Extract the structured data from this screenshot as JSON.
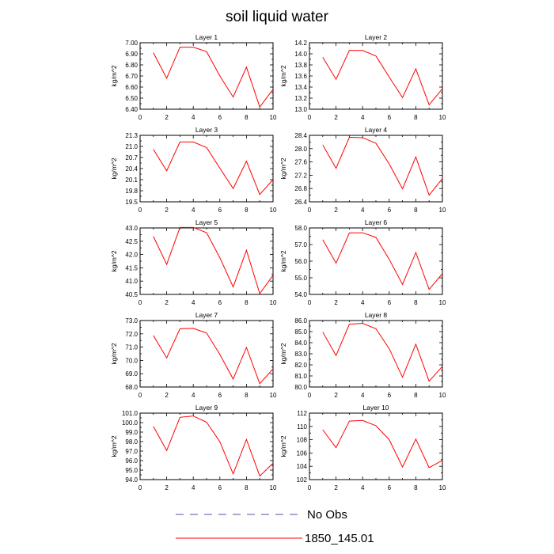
{
  "figure": {
    "title": "soil liquid water",
    "ylabel": "kg/m^2"
  },
  "legend": {
    "entries": [
      {
        "label": "No Obs",
        "color": "#5050a0",
        "style": "dashed"
      },
      {
        "label": "1850_145.01",
        "color": "#ff0000",
        "style": "solid"
      }
    ]
  },
  "chart_data": [
    {
      "type": "line",
      "title": "Layer 1",
      "ylabel": "kg/m^2",
      "xlim": [
        0,
        10
      ],
      "ylim": [
        6.4,
        7.0
      ],
      "xticks": [
        "0",
        "2",
        "4",
        "6",
        "8",
        "10"
      ],
      "yticks": [
        "6.40",
        "6.50",
        "6.60",
        "6.70",
        "6.80",
        "6.90",
        "7.00"
      ],
      "series": [
        {
          "name": "1850_145.01",
          "color": "#ff0000",
          "x": [
            1,
            2,
            3,
            4,
            5,
            6,
            7,
            8,
            9,
            10
          ],
          "values": [
            6.91,
            6.68,
            6.96,
            6.96,
            6.92,
            6.7,
            6.51,
            6.78,
            6.42,
            6.58
          ]
        }
      ]
    },
    {
      "type": "line",
      "title": "Layer 2",
      "ylabel": "kg/m^2",
      "xlim": [
        0,
        10
      ],
      "ylim": [
        13.0,
        14.2
      ],
      "xticks": [
        "0",
        "2",
        "4",
        "6",
        "8",
        "10"
      ],
      "yticks": [
        "13.0",
        "13.2",
        "13.4",
        "13.6",
        "13.8",
        "14.0",
        "14.2"
      ],
      "series": [
        {
          "name": "1850_145.01",
          "color": "#ff0000",
          "x": [
            1,
            2,
            3,
            4,
            5,
            6,
            7,
            8,
            9,
            10
          ],
          "values": [
            13.94,
            13.54,
            14.06,
            14.06,
            13.96,
            13.58,
            13.21,
            13.73,
            13.08,
            13.37
          ]
        }
      ]
    },
    {
      "type": "line",
      "title": "Layer 3",
      "ylabel": "kg/m^2",
      "xlim": [
        0,
        10
      ],
      "ylim": [
        19.5,
        21.3
      ],
      "xticks": [
        "0",
        "2",
        "4",
        "6",
        "8",
        "10"
      ],
      "yticks": [
        "19.5",
        "19.8",
        "20.1",
        "20.4",
        "20.7",
        "21.0",
        "21.3"
      ],
      "series": [
        {
          "name": "1850_145.01",
          "color": "#ff0000",
          "x": [
            1,
            2,
            3,
            4,
            5,
            6,
            7,
            8,
            9,
            10
          ],
          "values": [
            20.92,
            20.34,
            21.12,
            21.12,
            20.97,
            20.41,
            19.86,
            20.6,
            19.7,
            20.1
          ]
        }
      ]
    },
    {
      "type": "line",
      "title": "Layer 4",
      "ylabel": "kg/m^2",
      "xlim": [
        0,
        10
      ],
      "ylim": [
        26.4,
        28.4
      ],
      "xticks": [
        "0",
        "2",
        "4",
        "6",
        "8",
        "10"
      ],
      "yticks": [
        "26.4",
        "26.8",
        "27.2",
        "27.6",
        "28.0",
        "28.4"
      ],
      "series": [
        {
          "name": "1850_145.01",
          "color": "#ff0000",
          "x": [
            1,
            2,
            3,
            4,
            5,
            6,
            7,
            8,
            9,
            10
          ],
          "values": [
            28.11,
            27.41,
            28.34,
            28.33,
            28.16,
            27.54,
            26.79,
            27.75,
            26.6,
            27.1
          ]
        }
      ]
    },
    {
      "type": "line",
      "title": "Layer 5",
      "ylabel": "kg/m^2",
      "xlim": [
        0,
        10
      ],
      "ylim": [
        40.5,
        43.0
      ],
      "xticks": [
        "0",
        "2",
        "4",
        "6",
        "8",
        "10"
      ],
      "yticks": [
        "40.5",
        "41.0",
        "41.5",
        "42.0",
        "42.5",
        "43.0"
      ],
      "series": [
        {
          "name": "1850_145.01",
          "color": "#ff0000",
          "x": [
            1,
            2,
            3,
            4,
            5,
            6,
            7,
            8,
            9,
            10
          ],
          "values": [
            42.68,
            41.63,
            43.02,
            43.02,
            42.82,
            41.88,
            40.78,
            42.16,
            40.53,
            41.22
          ]
        }
      ]
    },
    {
      "type": "line",
      "title": "Layer 6",
      "ylabel": "kg/m^2",
      "xlim": [
        0,
        10
      ],
      "ylim": [
        54.0,
        58.0
      ],
      "xticks": [
        "0",
        "2",
        "4",
        "6",
        "8",
        "10"
      ],
      "yticks": [
        "54.0",
        "55.0",
        "56.0",
        "57.0",
        "58.0"
      ],
      "series": [
        {
          "name": "1850_145.01",
          "color": "#ff0000",
          "x": [
            1,
            2,
            3,
            4,
            5,
            6,
            7,
            8,
            9,
            10
          ],
          "values": [
            57.29,
            55.88,
            57.7,
            57.71,
            57.43,
            56.11,
            54.6,
            56.52,
            54.3,
            55.25
          ]
        }
      ]
    },
    {
      "type": "line",
      "title": "Layer 7",
      "ylabel": "kg/m^2",
      "xlim": [
        0,
        10
      ],
      "ylim": [
        68.0,
        73.0
      ],
      "xticks": [
        "0",
        "2",
        "4",
        "6",
        "8",
        "10"
      ],
      "yticks": [
        "68.0",
        "69.0",
        "70.0",
        "71.0",
        "72.0",
        "73.0"
      ],
      "series": [
        {
          "name": "1850_145.01",
          "color": "#ff0000",
          "x": [
            1,
            2,
            3,
            4,
            5,
            6,
            7,
            8,
            9,
            10
          ],
          "values": [
            71.88,
            70.19,
            72.38,
            72.41,
            72.06,
            70.45,
            68.6,
            70.98,
            68.25,
            69.37
          ]
        }
      ]
    },
    {
      "type": "line",
      "title": "Layer 8",
      "ylabel": "kg/m^2",
      "xlim": [
        0,
        10
      ],
      "ylim": [
        80.0,
        86.0
      ],
      "xticks": [
        "0",
        "2",
        "4",
        "6",
        "8",
        "10"
      ],
      "yticks": [
        "80.0",
        "81.0",
        "82.0",
        "83.0",
        "84.0",
        "85.0",
        "86.0"
      ],
      "series": [
        {
          "name": "1850_145.01",
          "color": "#ff0000",
          "x": [
            1,
            2,
            3,
            4,
            5,
            6,
            7,
            8,
            9,
            10
          ],
          "values": [
            84.96,
            82.84,
            85.66,
            85.75,
            85.26,
            83.46,
            80.88,
            83.86,
            80.52,
            81.86
          ]
        }
      ]
    },
    {
      "type": "line",
      "title": "Layer 9",
      "ylabel": "kg/m^2",
      "xlim": [
        0,
        10
      ],
      "ylim": [
        94.0,
        101.0
      ],
      "xticks": [
        "0",
        "2",
        "4",
        "6",
        "8",
        "10"
      ],
      "yticks": [
        "94.0",
        "95.0",
        "96.0",
        "97.0",
        "98.0",
        "99.0",
        "100.0",
        "101.0"
      ],
      "series": [
        {
          "name": "1850_145.01",
          "color": "#ff0000",
          "x": [
            1,
            2,
            3,
            4,
            5,
            6,
            7,
            8,
            9,
            10
          ],
          "values": [
            99.6,
            97.06,
            100.56,
            100.7,
            100.04,
            97.99,
            94.6,
            98.23,
            94.38,
            95.72
          ]
        }
      ]
    },
    {
      "type": "line",
      "title": "Layer 10",
      "ylabel": "kg/m^2",
      "xlim": [
        0,
        10
      ],
      "ylim": [
        102,
        112
      ],
      "xticks": [
        "0",
        "2",
        "4",
        "6",
        "8",
        "10"
      ],
      "yticks": [
        "102",
        "104",
        "106",
        "108",
        "110",
        "112"
      ],
      "series": [
        {
          "name": "1850_145.01",
          "color": "#ff0000",
          "x": [
            1,
            2,
            3,
            4,
            5,
            6,
            7,
            8,
            9,
            10
          ],
          "values": [
            109.5,
            106.8,
            110.8,
            110.9,
            110.1,
            108.0,
            103.9,
            108.1,
            103.8,
            104.9
          ]
        }
      ]
    }
  ]
}
